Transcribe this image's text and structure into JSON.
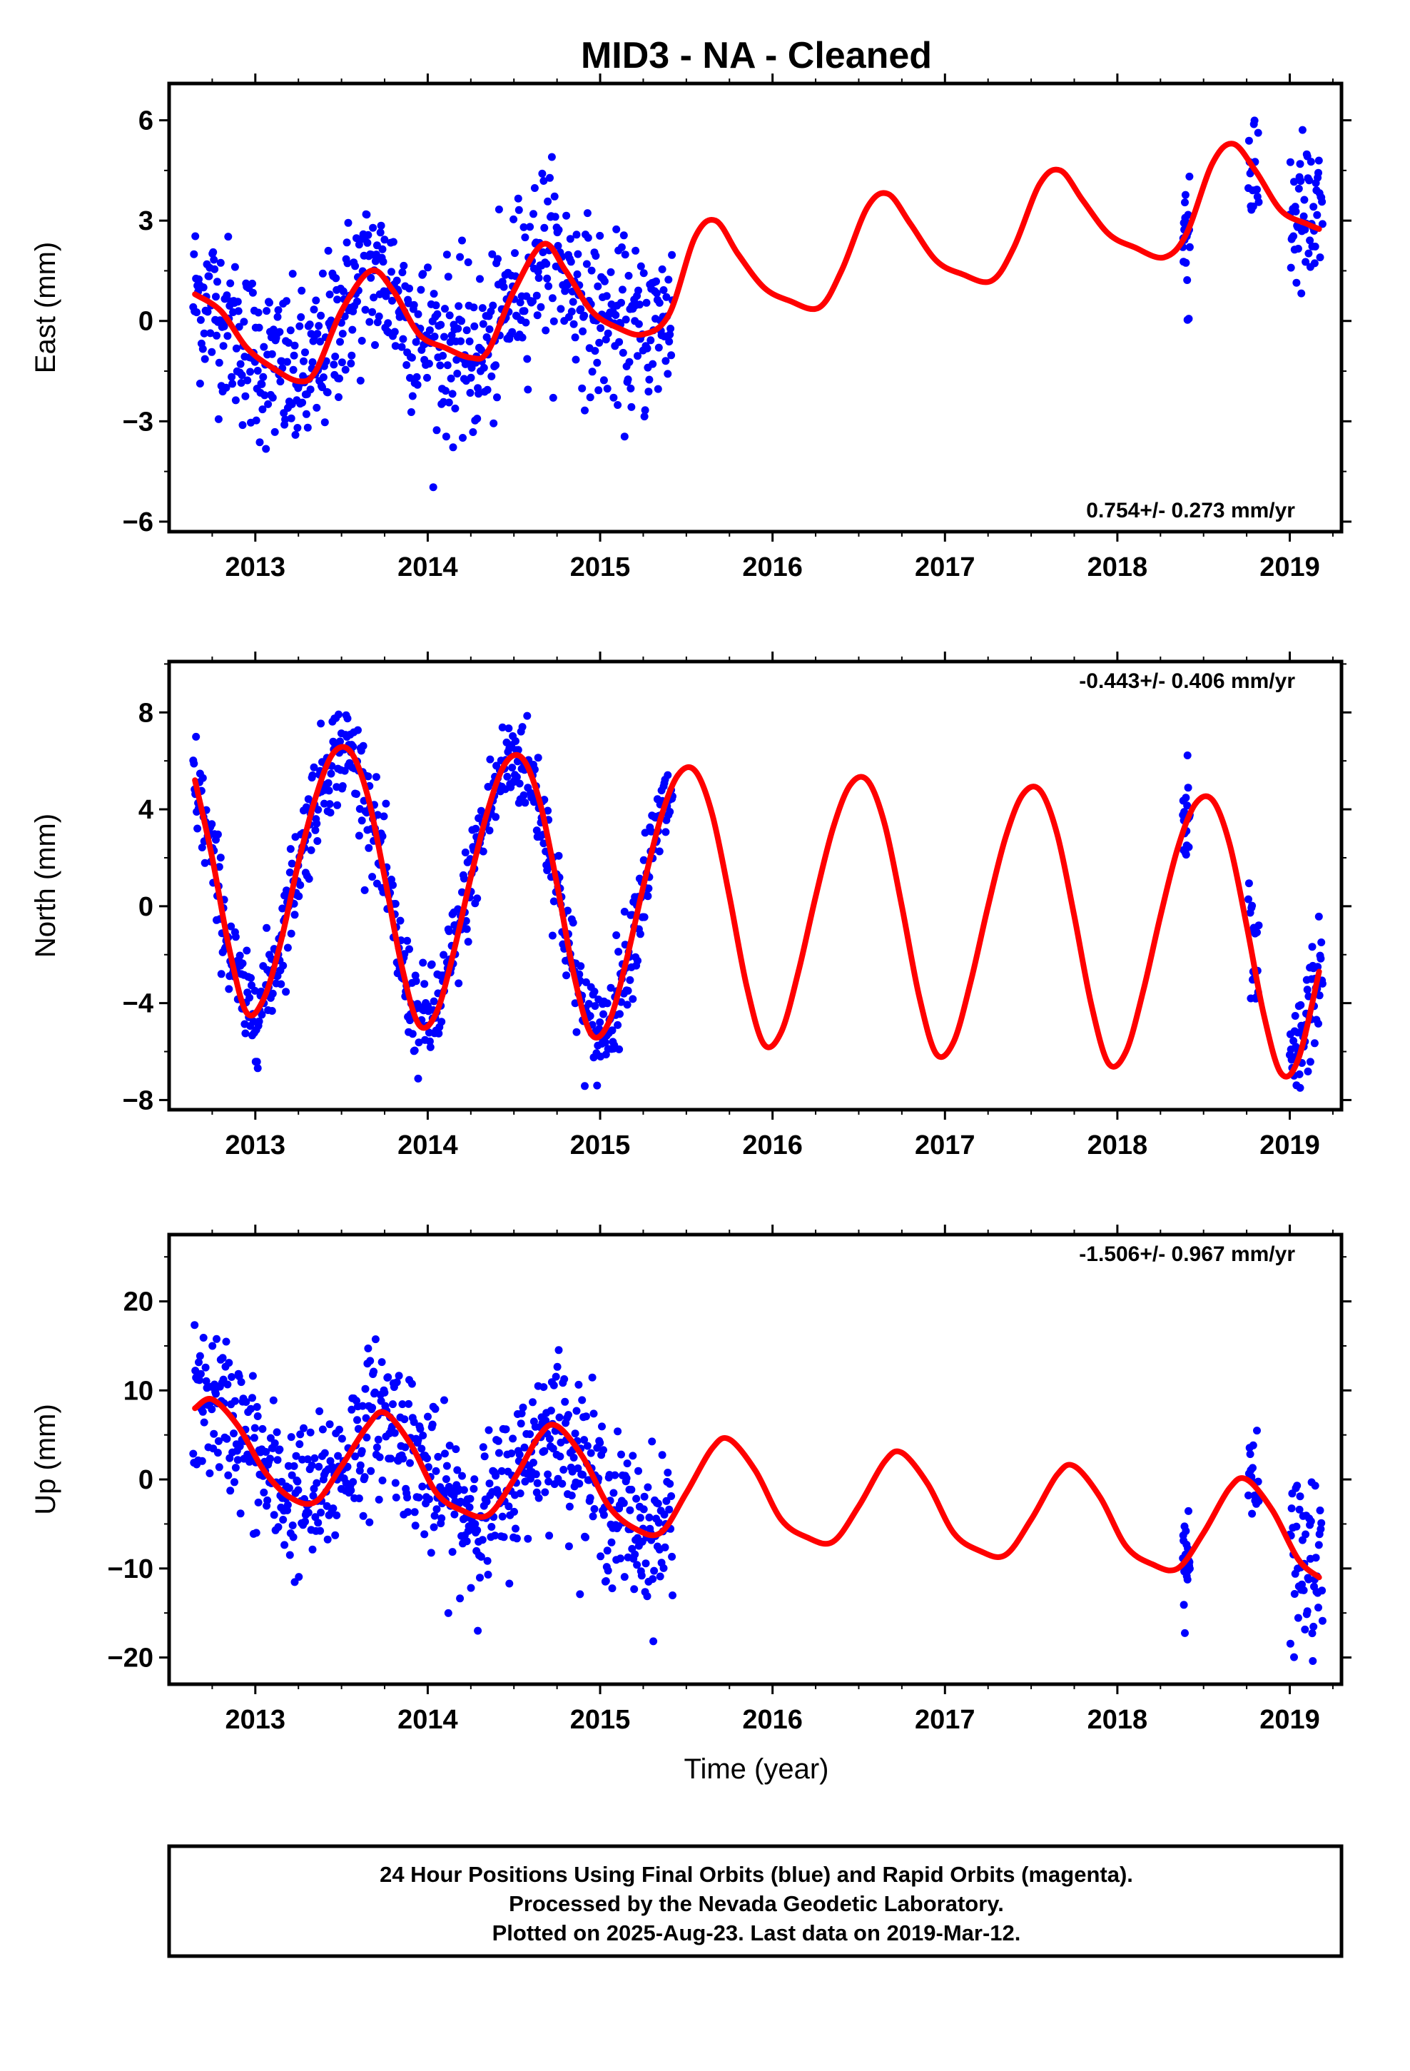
{
  "title": "MID3  - NA - Cleaned",
  "colors": {
    "points": "#0000ff",
    "fit": "#ff0000",
    "frame": "#000000"
  },
  "xlabel": "Time (year)",
  "xticks": [
    "2013",
    "2014",
    "2015",
    "2016",
    "2017",
    "2018",
    "2019"
  ],
  "footer": {
    "line1": "24 Hour Positions Using Final Orbits (blue) and Rapid Orbits (magenta).",
    "line2": "Processed by the Nevada Geodetic Laboratory.",
    "line3": "Plotted on 2025-Aug-23. Last data on 2019-Mar-12."
  },
  "chart_data": [
    {
      "type": "scatter",
      "ylabel": "East (mm)",
      "rate_label": "0.754+/- 0.273 mm/yr",
      "rate_position": "bottom-right",
      "xlim": [
        2012.5,
        2019.3
      ],
      "ylim": [
        -6.3,
        7.1
      ],
      "yticks": [
        -6,
        -3,
        0,
        3,
        6
      ],
      "ytick_labels": [
        "−6",
        "−3",
        "0",
        "3",
        "6"
      ],
      "series": [
        {
          "kind": "fit-line",
          "x": [
            2012.65,
            2012.8,
            2012.95,
            2013.1,
            2013.25,
            2013.35,
            2013.5,
            2013.67,
            2013.8,
            2013.95,
            2014.1,
            2014.25,
            2014.35,
            2014.5,
            2014.67,
            2014.8,
            2014.95,
            2015.1,
            2015.25,
            2015.4,
            2015.55,
            2015.67,
            2015.8,
            2015.95,
            2016.1,
            2016.27,
            2016.4,
            2016.55,
            2016.67,
            2016.8,
            2016.95,
            2017.1,
            2017.27,
            2017.4,
            2017.55,
            2017.67,
            2017.8,
            2017.95,
            2018.1,
            2018.27,
            2018.4,
            2018.55,
            2018.67,
            2018.8,
            2018.95,
            2019.1,
            2019.17
          ],
          "y": [
            0.8,
            0.3,
            -0.8,
            -1.4,
            -1.8,
            -1.5,
            0.3,
            1.5,
            0.9,
            -0.4,
            -0.8,
            -1.1,
            -0.9,
            0.9,
            2.3,
            1.5,
            0.3,
            -0.2,
            -0.4,
            0.2,
            2.5,
            3.0,
            2.0,
            1.0,
            0.6,
            0.4,
            1.5,
            3.4,
            3.8,
            2.9,
            1.8,
            1.4,
            1.2,
            2.2,
            4.1,
            4.5,
            3.6,
            2.6,
            2.2,
            1.9,
            2.6,
            4.7,
            5.3,
            4.5,
            3.3,
            2.9,
            2.75
          ]
        },
        {
          "kind": "data-points",
          "segments": [
            {
              "x_start": 2012.64,
              "x_end": 2015.42,
              "count": 700,
              "scatter": 1.25
            },
            {
              "x_start": 2018.38,
              "x_end": 2018.42,
              "count": 22,
              "scatter": 1.3
            },
            {
              "x_start": 2018.76,
              "x_end": 2018.82,
              "count": 18,
              "scatter": 1.3
            },
            {
              "x_start": 2019.0,
              "x_end": 2019.19,
              "count": 55,
              "scatter": 1.3
            }
          ]
        }
      ]
    },
    {
      "type": "scatter",
      "ylabel": "North (mm)",
      "rate_label": "-0.443+/- 0.406 mm/yr",
      "rate_position": "top-right",
      "xlim": [
        2012.5,
        2019.3
      ],
      "ylim": [
        -8.4,
        10.1
      ],
      "yticks": [
        -8,
        -4,
        0,
        4,
        8
      ],
      "ytick_labels": [
        "−8",
        "−4",
        "0",
        "4",
        "8"
      ],
      "series": [
        {
          "kind": "fit-line",
          "x": [
            2012.65,
            2012.75,
            2012.85,
            2012.95,
            2013.05,
            2013.15,
            2013.25,
            2013.35,
            2013.45,
            2013.55,
            2013.65,
            2013.75,
            2013.85,
            2013.95,
            2014.05,
            2014.15,
            2014.25,
            2014.35,
            2014.45,
            2014.55,
            2014.65,
            2014.75,
            2014.85,
            2014.95,
            2015.05,
            2015.15,
            2015.25,
            2015.35,
            2015.45,
            2015.55,
            2015.65,
            2015.75,
            2015.85,
            2015.95,
            2016.05,
            2016.15,
            2016.25,
            2016.35,
            2016.45,
            2016.55,
            2016.65,
            2016.75,
            2016.85,
            2016.95,
            2017.05,
            2017.15,
            2017.25,
            2017.35,
            2017.45,
            2017.55,
            2017.65,
            2017.75,
            2017.85,
            2017.95,
            2018.05,
            2018.15,
            2018.25,
            2018.35,
            2018.45,
            2018.55,
            2018.65,
            2018.75,
            2018.85,
            2018.95,
            2019.05,
            2019.17
          ],
          "y": [
            5.2,
            2.0,
            -1.8,
            -4.4,
            -3.8,
            -1.4,
            1.8,
            4.5,
            6.3,
            6.4,
            4.6,
            1.2,
            -2.5,
            -4.9,
            -4.4,
            -1.9,
            1.2,
            4.0,
            5.9,
            6.1,
            4.3,
            0.9,
            -2.9,
            -5.3,
            -4.8,
            -2.3,
            0.8,
            3.6,
            5.4,
            5.6,
            3.8,
            0.4,
            -3.3,
            -5.7,
            -5.2,
            -2.7,
            0.4,
            3.2,
            5.0,
            5.2,
            3.4,
            0.0,
            -3.7,
            -6.1,
            -5.6,
            -3.1,
            0.0,
            2.8,
            4.6,
            4.8,
            3.0,
            -0.4,
            -4.1,
            -6.5,
            -6.0,
            -3.5,
            -0.4,
            2.4,
            4.2,
            4.4,
            2.6,
            -0.8,
            -4.5,
            -6.9,
            -6.3,
            -2.7
          ]
        },
        {
          "kind": "data-points",
          "segments": [
            {
              "x_start": 2012.64,
              "x_end": 2015.42,
              "count": 700,
              "scatter": 1.05
            },
            {
              "x_start": 2018.38,
              "x_end": 2018.42,
              "count": 22,
              "scatter": 1.2
            },
            {
              "x_start": 2018.76,
              "x_end": 2018.82,
              "count": 18,
              "scatter": 1.1
            },
            {
              "x_start": 2019.0,
              "x_end": 2019.19,
              "count": 55,
              "scatter": 1.2
            }
          ]
        }
      ]
    },
    {
      "type": "scatter",
      "ylabel": "Up (mm)",
      "rate_label": "-1.506+/- 0.967 mm/yr",
      "rate_position": "top-right",
      "xlim": [
        2012.5,
        2019.3
      ],
      "ylim": [
        -23.0,
        27.5
      ],
      "yticks": [
        -20,
        -10,
        0,
        10,
        20
      ],
      "ytick_labels": [
        "−20",
        "−10",
        "0",
        "10",
        "20"
      ],
      "series": [
        {
          "kind": "fit-line",
          "x": [
            2012.65,
            2012.75,
            2012.9,
            2013.05,
            2013.2,
            2013.35,
            2013.5,
            2013.65,
            2013.75,
            2013.9,
            2014.05,
            2014.2,
            2014.35,
            2014.5,
            2014.65,
            2014.75,
            2014.9,
            2015.05,
            2015.2,
            2015.35,
            2015.5,
            2015.65,
            2015.75,
            2015.9,
            2016.05,
            2016.2,
            2016.35,
            2016.5,
            2016.65,
            2016.75,
            2016.9,
            2017.05,
            2017.2,
            2017.35,
            2017.5,
            2017.65,
            2017.75,
            2017.9,
            2018.05,
            2018.2,
            2018.35,
            2018.5,
            2018.65,
            2018.75,
            2018.9,
            2019.05,
            2019.17
          ],
          "y": [
            8.0,
            9.0,
            6.0,
            1.0,
            -2.0,
            -2.5,
            1.5,
            6.0,
            7.5,
            4.0,
            -1.5,
            -3.5,
            -4.0,
            0.0,
            5.0,
            6.0,
            2.5,
            -3.0,
            -5.5,
            -6.0,
            -1.5,
            3.5,
            4.5,
            1.0,
            -4.5,
            -6.5,
            -7.0,
            -3.0,
            2.0,
            3.0,
            -0.5,
            -6.0,
            -8.0,
            -8.5,
            -4.5,
            0.5,
            1.5,
            -2.0,
            -7.5,
            -9.5,
            -10.0,
            -6.0,
            -1.0,
            0.0,
            -3.5,
            -9.0,
            -11.0
          ]
        },
        {
          "kind": "data-points",
          "segments": [
            {
              "x_start": 2012.64,
              "x_end": 2015.42,
              "count": 700,
              "scatter": 4.2
            },
            {
              "x_start": 2018.38,
              "x_end": 2018.42,
              "count": 22,
              "scatter": 3.5
            },
            {
              "x_start": 2018.76,
              "x_end": 2018.82,
              "count": 18,
              "scatter": 2.5
            },
            {
              "x_start": 2019.0,
              "x_end": 2019.19,
              "count": 55,
              "scatter": 5.0
            }
          ]
        }
      ]
    }
  ]
}
